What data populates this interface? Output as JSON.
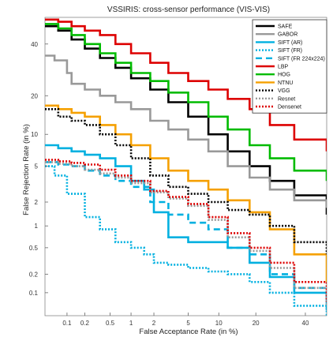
{
  "chart_data": {
    "type": "line",
    "title": "VSSIRIS: cross-sensor performance (VIS-VIS)",
    "xlabel": "False Acceptance Rate (in %)",
    "ylabel": "False Rejection Rate (in %)",
    "x_scale": "probit",
    "y_scale": "probit",
    "xlim": [
      0.04,
      50
    ],
    "ylim": [
      0.04,
      52
    ],
    "x_ticks": [
      0.1,
      0.2,
      0.5,
      1,
      2,
      5,
      10,
      20,
      40
    ],
    "x_tick_labels": [
      "0.1",
      "0.2",
      "0.5",
      "1",
      "2",
      "5",
      "10",
      "20",
      "40"
    ],
    "y_ticks": [
      0.1,
      0.2,
      0.5,
      1,
      2,
      5,
      10,
      20,
      40
    ],
    "y_tick_labels": [
      "0.1",
      "0.2",
      "0.5",
      "1",
      "2",
      "5",
      "10",
      "20",
      "40"
    ],
    "grid": false,
    "legend_position": "top-right",
    "series": [
      {
        "name": "SAFE",
        "color": "#000000",
        "style": "solid",
        "x": [
          0.04,
          0.07,
          0.12,
          0.2,
          0.35,
          0.6,
          1,
          1.8,
          3,
          5,
          8,
          12,
          18,
          25,
          35,
          50
        ],
        "y": [
          48,
          46,
          42,
          38,
          34,
          30,
          26,
          22,
          18,
          14,
          10,
          7,
          5,
          3.5,
          2.4,
          1.4
        ]
      },
      {
        "name": "GABOR",
        "color": "#999999",
        "style": "solid",
        "x": [
          0.04,
          0.06,
          0.1,
          0.12,
          0.2,
          0.35,
          0.6,
          1,
          1.8,
          3,
          5,
          8,
          12,
          18,
          25,
          35,
          50
        ],
        "y": [
          35,
          33,
          28,
          24,
          22,
          20,
          18,
          16,
          13,
          11,
          9,
          7,
          5,
          3.8,
          2.8,
          2.1,
          1.7
        ]
      },
      {
        "name": "SIFT (AR)",
        "color": "#00b0e0",
        "style": "solid",
        "x": [
          0.04,
          0.07,
          0.12,
          0.2,
          0.35,
          0.6,
          1,
          1.5,
          2,
          3,
          5,
          8,
          12,
          18,
          25,
          35,
          50
        ],
        "y": [
          8,
          7.5,
          7,
          6.5,
          6,
          5,
          3.5,
          2.8,
          1.5,
          0.7,
          0.6,
          0.6,
          0.5,
          0.3,
          0.18,
          0.1,
          0.05
        ]
      },
      {
        "name": "SIFT (FR)",
        "color": "#00b0e0",
        "style": "dotted",
        "x": [
          0.04,
          0.06,
          0.1,
          0.2,
          0.35,
          0.6,
          1,
          1.5,
          2,
          3,
          5,
          8,
          12,
          18,
          25,
          35,
          50
        ],
        "y": [
          5,
          4,
          2.5,
          1.3,
          0.9,
          0.6,
          0.5,
          0.4,
          0.3,
          0.28,
          0.25,
          0.22,
          0.2,
          0.15,
          0.1,
          0.06,
          0.04
        ]
      },
      {
        "name": "SIFT (FR 224x224)",
        "color": "#00b0e0",
        "style": "dashed",
        "x": [
          0.04,
          0.07,
          0.12,
          0.2,
          0.35,
          0.6,
          1,
          1.8,
          3,
          5,
          8,
          12,
          18,
          25,
          35,
          50
        ],
        "y": [
          5.5,
          5.2,
          5,
          4.5,
          4,
          3.5,
          3,
          2,
          1.4,
          1.1,
          0.9,
          0.5,
          0.4,
          0.2,
          0.12,
          0.08
        ]
      },
      {
        "name": "LBP",
        "color": "#dd0000",
        "style": "solid",
        "x": [
          0.04,
          0.07,
          0.12,
          0.2,
          0.35,
          0.6,
          1,
          1.8,
          3,
          5,
          8,
          12,
          18,
          25,
          35,
          50
        ],
        "y": [
          51,
          50,
          48,
          46,
          44,
          40,
          36,
          32,
          28,
          25,
          22,
          19,
          16,
          12,
          9,
          7
        ]
      },
      {
        "name": "HOG",
        "color": "#00bb00",
        "style": "solid",
        "x": [
          0.04,
          0.07,
          0.12,
          0.2,
          0.35,
          0.6,
          1,
          1.8,
          3,
          5,
          8,
          12,
          18,
          25,
          35,
          50
        ],
        "y": [
          49,
          47,
          44,
          40,
          36,
          32,
          28,
          25,
          21,
          18,
          14,
          11,
          8,
          6,
          4.5,
          3.5
        ]
      },
      {
        "name": "NTNU",
        "color": "#f5a000",
        "style": "solid",
        "x": [
          0.04,
          0.07,
          0.12,
          0.2,
          0.35,
          0.6,
          1,
          1.8,
          3,
          5,
          8,
          12,
          18,
          25,
          35,
          50
        ],
        "y": [
          17,
          16,
          15,
          14,
          12,
          10,
          8,
          6,
          4.5,
          3.5,
          2.8,
          2.1,
          1.5,
          0.9,
          0.4,
          0.15
        ]
      },
      {
        "name": "VGG",
        "color": "#000000",
        "style": "dotted",
        "x": [
          0.04,
          0.07,
          0.12,
          0.2,
          0.35,
          0.6,
          1,
          1.8,
          3,
          5,
          8,
          12,
          18,
          25,
          35,
          50
        ],
        "y": [
          16,
          14,
          13,
          12,
          10,
          8,
          6,
          4,
          3,
          2.5,
          2,
          1.6,
          1.4,
          1,
          0.6,
          0.4
        ]
      },
      {
        "name": "Resnet",
        "color": "#999999",
        "style": "dotted",
        "x": [
          0.04,
          0.07,
          0.12,
          0.2,
          0.35,
          0.6,
          1,
          1.8,
          3,
          5,
          8,
          12,
          18,
          25,
          35,
          50
        ],
        "y": [
          5.5,
          5.3,
          5,
          4.6,
          4.2,
          3.8,
          3.3,
          2.6,
          2.2,
          1.8,
          1.2,
          0.7,
          0.45,
          0.25,
          0.12,
          0.06
        ]
      },
      {
        "name": "Densenet",
        "color": "#dd0000",
        "style": "dotted",
        "x": [
          0.04,
          0.07,
          0.12,
          0.2,
          0.35,
          0.6,
          1,
          1.8,
          3,
          5,
          8,
          12,
          18,
          25,
          35,
          50
        ],
        "y": [
          5.8,
          5.6,
          5.4,
          5.2,
          4.6,
          4,
          3.5,
          2.7,
          2.3,
          1.9,
          1.3,
          0.8,
          0.5,
          0.3,
          0.15,
          0.07
        ]
      }
    ]
  }
}
